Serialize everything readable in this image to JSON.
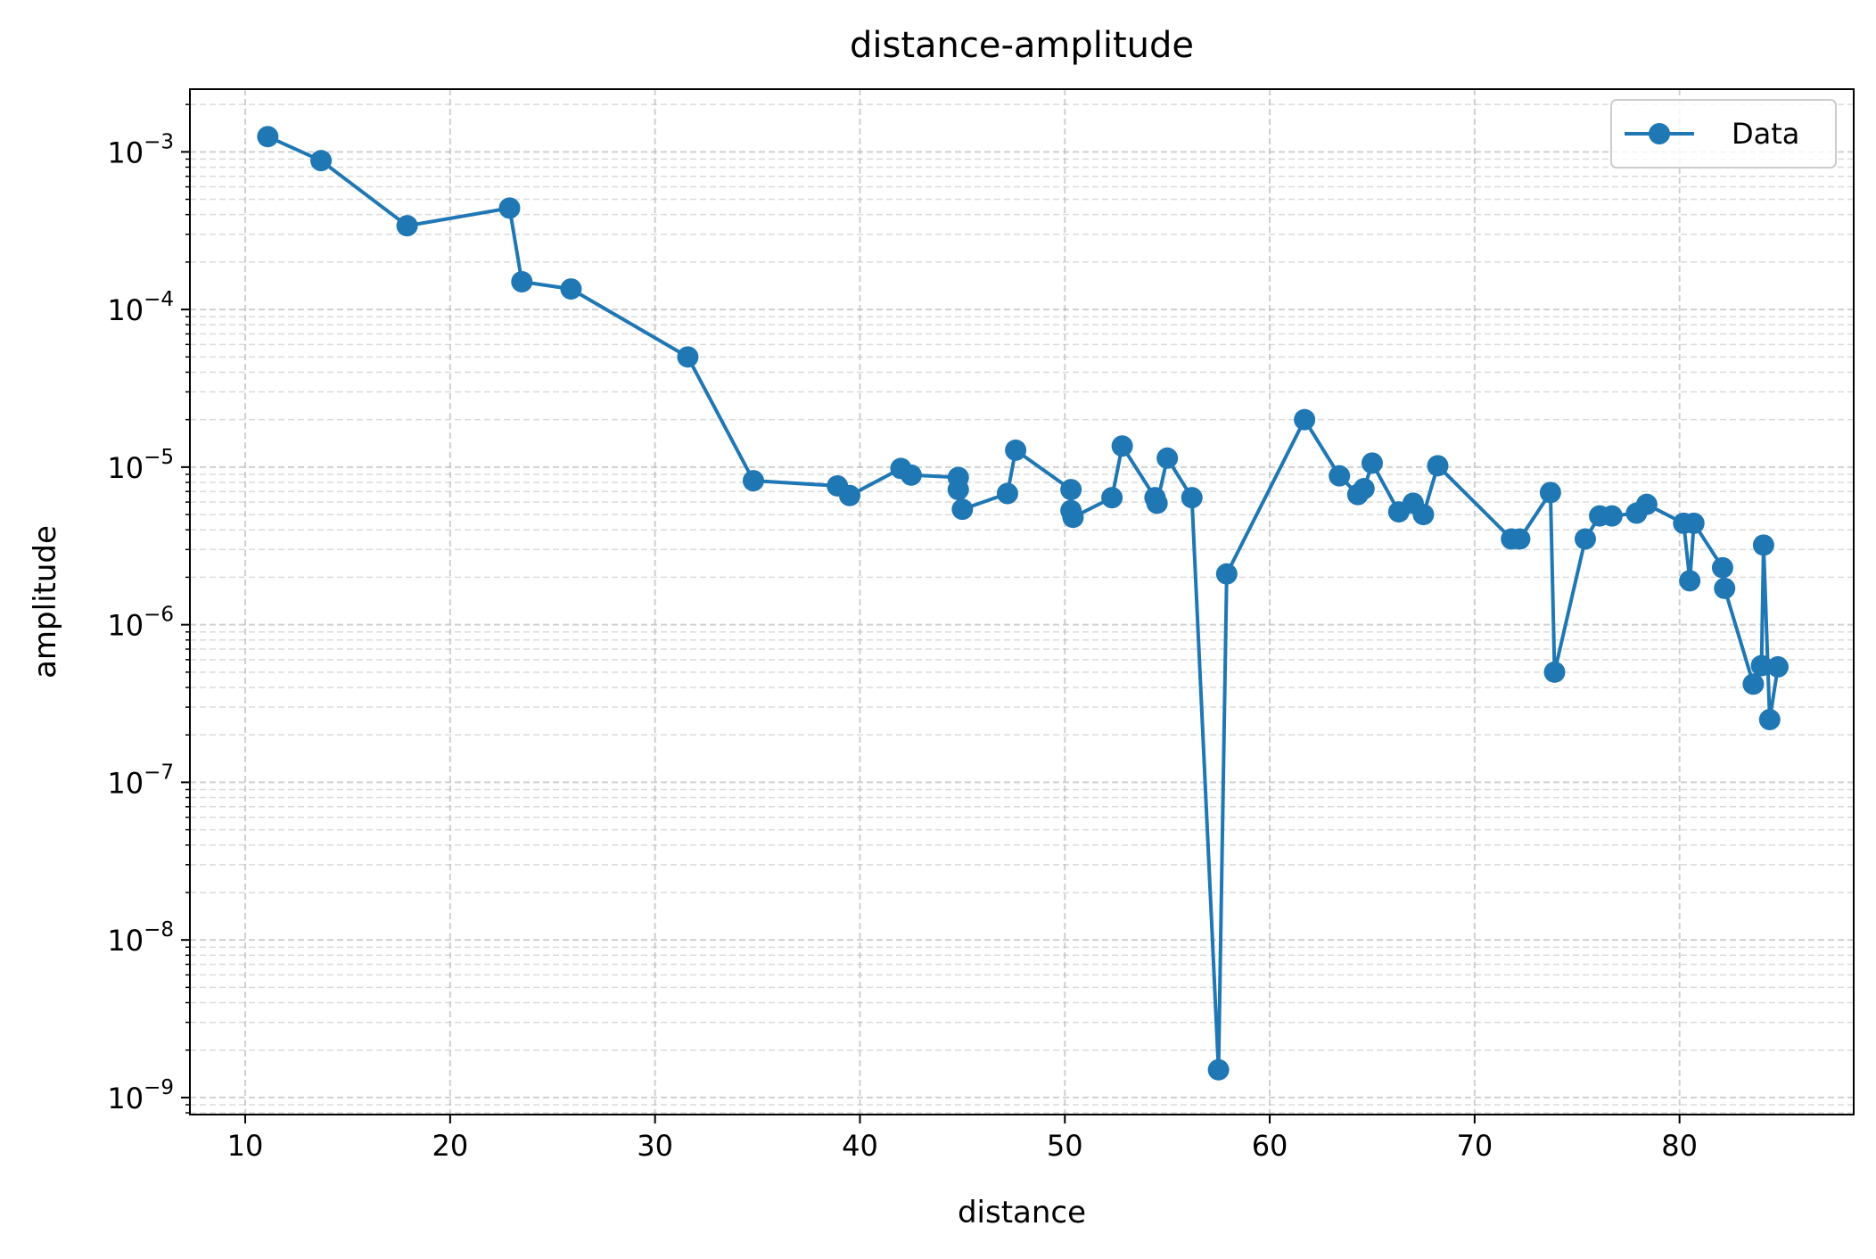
{
  "chart_data": {
    "type": "line",
    "title": "distance-amplitude",
    "xlabel": "distance",
    "ylabel": "amplitude",
    "xscale": "linear",
    "yscale": "log",
    "xlim": [
      7.3,
      88.5
    ],
    "ylim": [
      7.8e-10,
      0.0025
    ],
    "xticks": [
      10,
      20,
      30,
      40,
      50,
      60,
      70,
      80
    ],
    "xtick_labels": [
      "10",
      "20",
      "30",
      "40",
      "50",
      "60",
      "70",
      "80"
    ],
    "yticks": [
      1e-09,
      1e-08,
      1e-07,
      1e-06,
      1e-05,
      0.0001,
      0.001
    ],
    "ytick_labels": [
      {
        "base": "10",
        "exp": "−9"
      },
      {
        "base": "10",
        "exp": "−8"
      },
      {
        "base": "10",
        "exp": "−7"
      },
      {
        "base": "10",
        "exp": "−6"
      },
      {
        "base": "10",
        "exp": "−5"
      },
      {
        "base": "10",
        "exp": "−4"
      },
      {
        "base": "10",
        "exp": "−3"
      }
    ],
    "grid": true,
    "legend": {
      "placement": "top-right",
      "entries": [
        "Data"
      ]
    },
    "color": "#1f77b4",
    "series": [
      {
        "name": "Data",
        "marker": "circle",
        "x": [
          11.1,
          13.7,
          17.9,
          22.9,
          23.5,
          25.9,
          31.6,
          34.8,
          38.9,
          39.5,
          42.0,
          42.5,
          44.8,
          44.8,
          45.0,
          47.2,
          47.6,
          50.3,
          50.3,
          50.4,
          52.3,
          52.8,
          54.4,
          54.5,
          55.0,
          56.2,
          57.5,
          57.9,
          61.7,
          63.4,
          64.3,
          64.6,
          65.0,
          66.3,
          67.0,
          67.5,
          68.2,
          71.8,
          72.2,
          73.7,
          73.9,
          75.4,
          76.1,
          76.7,
          77.9,
          78.4,
          80.2,
          80.5,
          80.7,
          82.1,
          82.2,
          83.6,
          84.0,
          84.1,
          84.4,
          84.8
        ],
        "y": [
          0.00125,
          0.00088,
          0.00034,
          0.00044,
          0.00015,
          0.000135,
          5e-05,
          8.2e-06,
          7.6e-06,
          6.6e-06,
          9.8e-06,
          8.9e-06,
          8.6e-06,
          7.2e-06,
          5.4e-06,
          6.8e-06,
          1.28e-05,
          7.2e-06,
          5.3e-06,
          4.8e-06,
          6.4e-06,
          1.36e-05,
          6.4e-06,
          5.9e-06,
          1.14e-05,
          6.4e-06,
          1.5e-09,
          2.1e-06,
          2e-05,
          8.8e-06,
          6.7e-06,
          7.3e-06,
          1.06e-05,
          5.2e-06,
          5.9e-06,
          5e-06,
          1.02e-05,
          3.5e-06,
          3.5e-06,
          6.9e-06,
          5e-07,
          3.5e-06,
          4.9e-06,
          4.9e-06,
          5.1e-06,
          5.8e-06,
          4.4e-06,
          1.9e-06,
          4.4e-06,
          2.3e-06,
          1.7e-06,
          4.2e-07,
          5.5e-07,
          3.2e-06,
          2.5e-07,
          5.4e-07
        ]
      }
    ]
  }
}
